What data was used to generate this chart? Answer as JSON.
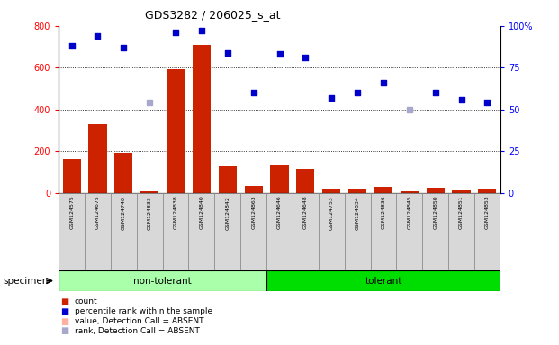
{
  "title": "GDS3282 / 206025_s_at",
  "samples": [
    "GSM124575",
    "GSM124675",
    "GSM124748",
    "GSM124833",
    "GSM124838",
    "GSM124840",
    "GSM124842",
    "GSM124863",
    "GSM124646",
    "GSM124648",
    "GSM124753",
    "GSM124834",
    "GSM124836",
    "GSM124845",
    "GSM124850",
    "GSM124851",
    "GSM124853"
  ],
  "bar_values": [
    165,
    330,
    195,
    10,
    595,
    710,
    130,
    35,
    135,
    115,
    20,
    20,
    30,
    10,
    25,
    15,
    20
  ],
  "bar_absent": [
    false,
    false,
    false,
    false,
    false,
    false,
    false,
    false,
    false,
    false,
    false,
    false,
    false,
    false,
    false,
    false,
    false
  ],
  "scatter_values": [
    88,
    94,
    87,
    54,
    96,
    97,
    84,
    60,
    83,
    81,
    57,
    60,
    66,
    50,
    60,
    56,
    54
  ],
  "scatter_absent_rank": [
    false,
    false,
    false,
    true,
    false,
    false,
    false,
    false,
    false,
    false,
    false,
    false,
    false,
    true,
    false,
    false,
    false
  ],
  "non_tolerant_count": 8,
  "left_ylim": [
    0,
    800
  ],
  "right_ylim": [
    0,
    100
  ],
  "left_yticks": [
    0,
    200,
    400,
    600,
    800
  ],
  "right_yticks": [
    0,
    25,
    50,
    75,
    100
  ],
  "bar_color": "#CC2200",
  "bar_absent_color": "#FFB0A0",
  "scatter_color": "#0000CC",
  "scatter_absent_color": "#A8A8CC",
  "non_tolerant_bg": "#AAFFAA",
  "tolerant_bg": "#00DD00",
  "specimen_label": "specimen",
  "non_tolerant_label": "non-tolerant",
  "tolerant_label": "tolerant",
  "legend_items": [
    "count",
    "percentile rank within the sample",
    "value, Detection Call = ABSENT",
    "rank, Detection Call = ABSENT"
  ]
}
